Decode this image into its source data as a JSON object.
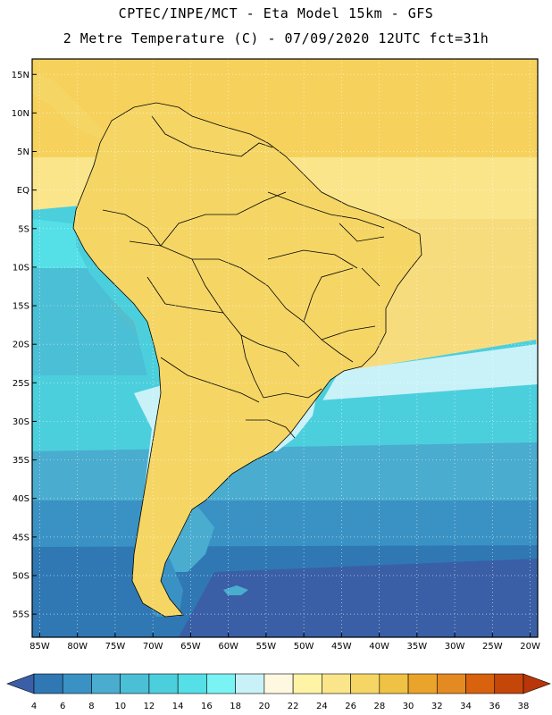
{
  "header": {
    "line1": "CPTEC/INPE/MCT -  Eta Model 15km - GFS",
    "line2": "2 Metre Temperature (C) - 07/09/2020 12UTC fct=31h"
  },
  "axes": {
    "lat_labels": [
      "15N",
      "10N",
      "5N",
      "EQ",
      "5S",
      "10S",
      "15S",
      "20S",
      "25S",
      "30S",
      "35S",
      "40S",
      "45S",
      "50S",
      "55S"
    ],
    "lat_values": [
      15,
      10,
      5,
      0,
      -5,
      -10,
      -15,
      -20,
      -25,
      -30,
      -35,
      -40,
      -45,
      -50,
      -55
    ],
    "lon_labels": [
      "85W",
      "80W",
      "75W",
      "70W",
      "65W",
      "60W",
      "55W",
      "50W",
      "45W",
      "40W",
      "35W",
      "30W",
      "25W",
      "20W"
    ],
    "lon_values": [
      -85,
      -80,
      -75,
      -70,
      -65,
      -60,
      -55,
      -50,
      -45,
      -40,
      -35,
      -30,
      -25,
      -20
    ],
    "lat_range": [
      -58,
      17
    ],
    "lon_range": [
      -86,
      -19
    ]
  },
  "colorbar": {
    "labels": [
      "4",
      "6",
      "8",
      "10",
      "12",
      "14",
      "16",
      "18",
      "20",
      "22",
      "24",
      "26",
      "28",
      "30",
      "32",
      "34",
      "36",
      "38"
    ],
    "colors": [
      "#3a5fa6",
      "#2f78b4",
      "#3a92c4",
      "#4aaccf",
      "#4bbfd6",
      "#4ccfdd",
      "#55dfe6",
      "#7af3f5",
      "#c9f2f8",
      "#fff8e1",
      "#fff3a6",
      "#fbe58a",
      "#f5d665",
      "#efc245",
      "#eaa32b",
      "#e48a22",
      "#d8620d",
      "#c44709",
      "#b8360a"
    ]
  }
}
